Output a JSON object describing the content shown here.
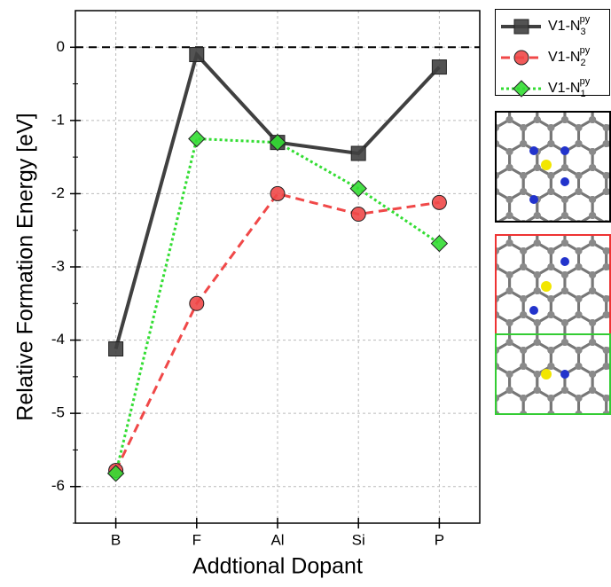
{
  "chart_data": {
    "type": "line",
    "x_label": "Addtional Dopant",
    "y_label": "Relative Formation Energy  [eV]",
    "categories": [
      "B",
      "F",
      "Al",
      "Si",
      "P"
    ],
    "series": [
      {
        "name": "V1-N",
        "subscript": "3",
        "superscript": "py",
        "color": "#404040",
        "line_style": "solid",
        "marker": "square",
        "values": [
          -4.12,
          -0.1,
          -1.3,
          -1.45,
          -0.27
        ]
      },
      {
        "name": "V1-N",
        "subscript": "2",
        "superscript": "py",
        "color": "#f04848",
        "line_style": "dashed",
        "marker": "circle",
        "values": [
          -5.78,
          -3.5,
          -2.0,
          -2.28,
          -2.12
        ]
      },
      {
        "name": "V1-N",
        "subscript": "1",
        "superscript": "py",
        "color": "#33dd33",
        "line_style": "dotted",
        "marker": "diamond",
        "values": [
          -5.82,
          -1.25,
          -1.3,
          -1.93,
          -2.68
        ]
      }
    ],
    "ylim": [
      -6.5,
      0.5
    ],
    "yticks": [
      0,
      -1,
      -2,
      -3,
      -4,
      -5,
      -6
    ],
    "grid": true,
    "zero_line": true,
    "legend": "outside-right"
  }
}
